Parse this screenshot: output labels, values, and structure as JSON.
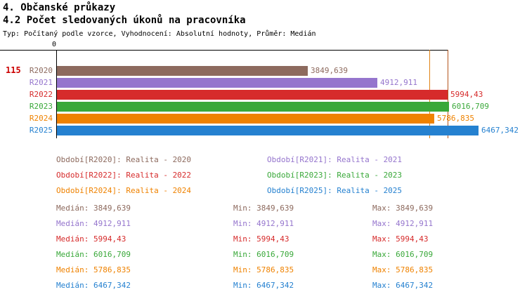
{
  "header": {
    "title1": "4. Občanské průkazy",
    "title2": "4.2 Počet sledovaných úkonů na pracovníka",
    "subtitle": "Typ: Počítaný podle vzorce, Vyhodnocení: Absolutní hodnoty, Průměr: Medián"
  },
  "left_id": "115",
  "chart_data": {
    "type": "bar",
    "orientation": "horizontal",
    "title": "4.2 Počet sledovaných úkonů na pracovníka",
    "x_axis_tick": "0",
    "xlim": [
      0,
      6467.342
    ],
    "grid": false,
    "legend_position": "bottom",
    "stats_columns": [
      "Medián",
      "Min",
      "Max"
    ],
    "categories": [
      "R2020",
      "R2021",
      "R2022",
      "R2023",
      "R2024",
      "R2025"
    ],
    "values": [
      3849.639,
      4912.911,
      5994.43,
      6016.709,
      5786.835,
      6467.342
    ],
    "series": [
      {
        "name": "R2020",
        "value": 3849.639,
        "value_label": "3849,639",
        "color": "#8d6a5e",
        "legend_label": "Období[R2020]: Realita - 2020",
        "median_label": "Medián: 3849,639",
        "min_label": "Min: 3849,639",
        "max_label": "Max: 3849,639"
      },
      {
        "name": "R2021",
        "value": 4912.911,
        "value_label": "4912,911",
        "color": "#9575cd",
        "legend_label": "Období[R2021]: Realita - 2021",
        "median_label": "Medián: 4912,911",
        "min_label": "Min: 4912,911",
        "max_label": "Max: 4912,911"
      },
      {
        "name": "R2022",
        "value": 5994.43,
        "value_label": "5994,43",
        "color": "#d62b2b",
        "legend_label": "Období[R2022]: Realita - 2022",
        "median_label": "Medián: 5994,43",
        "min_label": "Min: 5994,43",
        "max_label": "Max: 5994,43"
      },
      {
        "name": "R2023",
        "value": 6016.709,
        "value_label": "6016,709",
        "color": "#39a839",
        "legend_label": "Období[R2023]: Realita - 2023",
        "median_label": "Medián: 6016,709",
        "min_label": "Min: 6016,709",
        "max_label": "Max: 6016,709"
      },
      {
        "name": "R2024",
        "value": 5786.835,
        "value_label": "5786,835",
        "color": "#ef8200",
        "legend_label": "Období[R2024]: Realita - 2024",
        "median_label": "Medián: 5786,835",
        "min_label": "Min: 5786,835",
        "max_label": "Max: 5786,835"
      },
      {
        "name": "R2025",
        "value": 6467.342,
        "value_label": "6467,342",
        "color": "#2581d0",
        "legend_label": "Období[R2025]: Realita - 2025",
        "median_label": "Medián: 6467,342",
        "min_label": "Min: 6467,342",
        "max_label": "Max: 6467,342"
      }
    ],
    "marker_lines": [
      {
        "color": "#e08214"
      },
      {
        "color": "#b4541b"
      }
    ]
  }
}
